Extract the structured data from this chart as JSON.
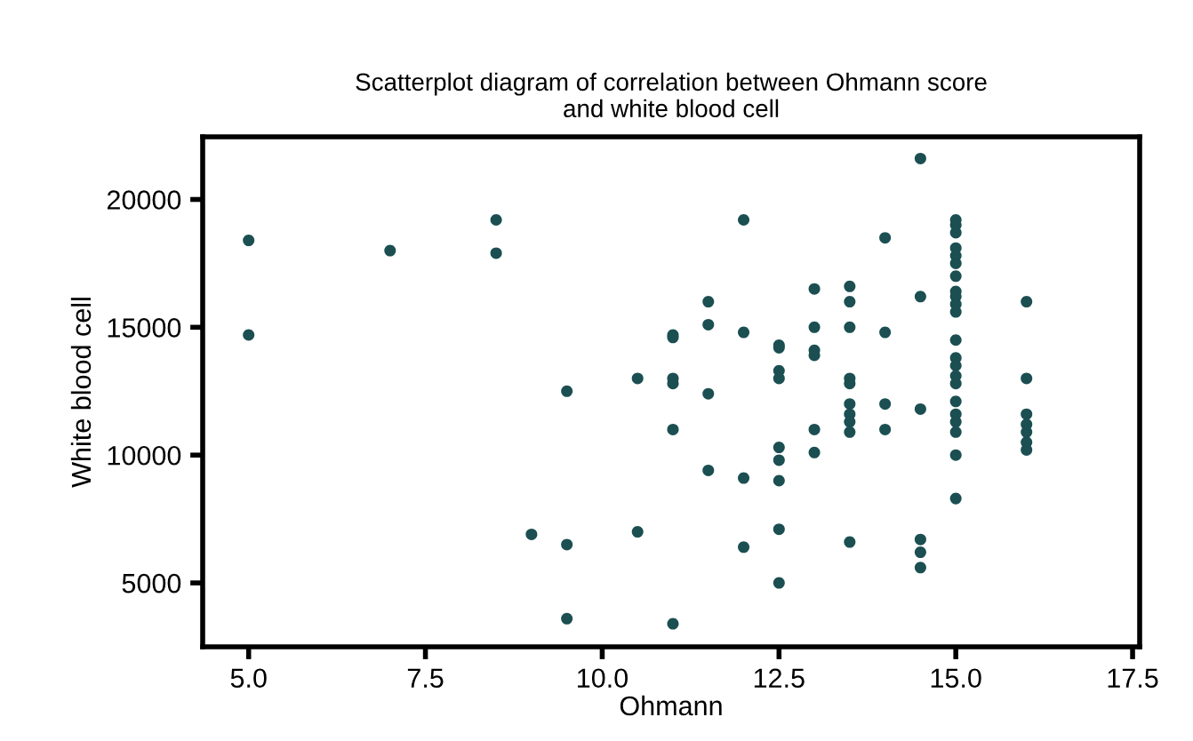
{
  "chart_data": {
    "type": "scatter",
    "title": "Scatterplot diagram of correlation between Ohmann score\nand white blood cell",
    "xlabel": "Ohmann",
    "ylabel": "White blood cell",
    "series": [
      {
        "color": "#1b4f52",
        "x": [
          5,
          5,
          7,
          8.5,
          8.5,
          9,
          9.5,
          9.5,
          9.5,
          10.5,
          10.5,
          11,
          11,
          11,
          11,
          11,
          11,
          11.5,
          11.5,
          11.5,
          11.5,
          12,
          12,
          12,
          12,
          12.5,
          12.5,
          12.5,
          12.5,
          12.5,
          12.5,
          12.5,
          12.5,
          12.5,
          13,
          13,
          13,
          13,
          13,
          13,
          13.5,
          13.5,
          13.5,
          13.5,
          13.5,
          13.5,
          13.5,
          13.5,
          13.5,
          13.5,
          14,
          14,
          14,
          14,
          14.5,
          14.5,
          14.5,
          14.5,
          14.5,
          14.5,
          15,
          15,
          15,
          15,
          15,
          15,
          15,
          15,
          15,
          15,
          15,
          15,
          15,
          15,
          15,
          15,
          15,
          15,
          15,
          15,
          15,
          15,
          16,
          16,
          16,
          16,
          16,
          16,
          16
        ],
        "values": [
          18400,
          14700,
          18000,
          19200,
          17900,
          6900,
          12500,
          6500,
          3600,
          13000,
          7000,
          14700,
          14600,
          13000,
          12800,
          11000,
          3400,
          16000,
          15100,
          12400,
          9400,
          19200,
          14800,
          9100,
          6400,
          14300,
          14200,
          13300,
          13000,
          10300,
          9800,
          9000,
          7100,
          5000,
          16500,
          15000,
          14100,
          13900,
          11000,
          10100,
          16600,
          16000,
          15000,
          13000,
          12800,
          12000,
          11600,
          11300,
          10900,
          6600,
          18500,
          14800,
          12000,
          11000,
          21600,
          16200,
          11800,
          6700,
          6200,
          5600,
          19200,
          19000,
          18700,
          18100,
          17800,
          17500,
          17000,
          16400,
          16200,
          15900,
          15600,
          14500,
          13800,
          13500,
          13100,
          12800,
          12100,
          11600,
          11300,
          10900,
          10000,
          8300,
          16000,
          13000,
          11600,
          11200,
          10900,
          10500,
          10200
        ]
      }
    ],
    "xlim": [
      4.35,
      17.6
    ],
    "ylim": [
      2500,
      22450
    ],
    "xticks": [
      {
        "value": 5,
        "label": "5.0"
      },
      {
        "value": 7.5,
        "label": "7.5"
      },
      {
        "value": 10,
        "label": "10.0"
      },
      {
        "value": 12.5,
        "label": "12.5"
      },
      {
        "value": 15,
        "label": "15.0"
      },
      {
        "value": 17.5,
        "label": "17.5"
      }
    ],
    "yticks": [
      5000,
      10000,
      15000,
      20000
    ],
    "marker": "circle",
    "grid": false
  }
}
